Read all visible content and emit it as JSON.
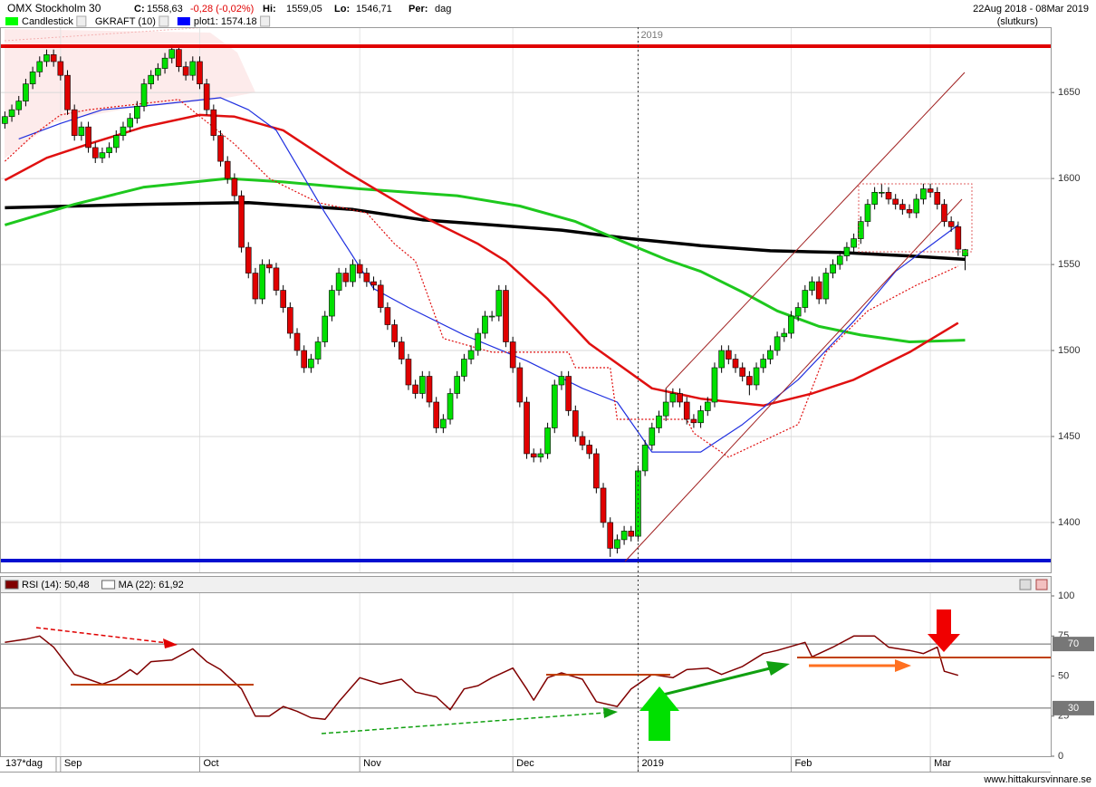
{
  "header": {
    "title": "OMX Stockholm 30",
    "close_label": "C:",
    "close": "1558,63",
    "change": "-0,28 (-0,02%)",
    "high_label": "Hi:",
    "high": "1559,05",
    "low_label": "Lo:",
    "low": "1546,71",
    "period_label": "Per:",
    "period": "dag",
    "date_range": "22Aug 2018 - 08Mar 2019",
    "price_type": "(slutkurs)",
    "legend": [
      {
        "name": "Candlestick",
        "color": "#00ff00"
      },
      {
        "name": "GKRAFT (10)"
      },
      {
        "name": "plot1: 1574.18",
        "color": "#0000ff"
      }
    ],
    "footer": "137*dag",
    "watermark": "www.hittakursvinnare.se"
  },
  "chart_data": [
    {
      "type": "candlestick",
      "up_color": "#00e000",
      "down_color": "#e00000",
      "xlim": [
        -0.7,
        150.3
      ],
      "ylim": [
        1371,
        1688
      ],
      "yticks": [
        1400,
        1450,
        1500,
        1550,
        1600,
        1650
      ],
      "grid": true,
      "xticks": [
        {
          "value": 8,
          "label": "Sep"
        },
        {
          "value": 28,
          "label": "Oct"
        },
        {
          "value": 51,
          "label": "Nov"
        },
        {
          "value": 73,
          "label": "Dec"
        },
        {
          "value": 91,
          "label": "2019"
        },
        {
          "value": 113,
          "label": "Feb"
        },
        {
          "value": 133,
          "label": "Mar"
        }
      ],
      "vline": {
        "value": 91,
        "label": "2019"
      },
      "candles": [
        [
          1632,
          1639,
          1629,
          1636
        ],
        [
          1636,
          1643,
          1633,
          1640
        ],
        [
          1640,
          1648,
          1637,
          1645
        ],
        [
          1645,
          1658,
          1642,
          1655
        ],
        [
          1655,
          1665,
          1652,
          1662
        ],
        [
          1662,
          1671,
          1659,
          1668
        ],
        [
          1668,
          1675,
          1665,
          1672
        ],
        [
          1672,
          1675,
          1665,
          1668
        ],
        [
          1668,
          1671,
          1657,
          1660
        ],
        [
          1660,
          1663,
          1637,
          1640
        ],
        [
          1640,
          1643,
          1622,
          1625
        ],
        [
          1625,
          1633,
          1622,
          1630
        ],
        [
          1630,
          1633,
          1615,
          1618
        ],
        [
          1618,
          1621,
          1609,
          1612
        ],
        [
          1612,
          1618,
          1609,
          1615
        ],
        [
          1615,
          1621,
          1612,
          1618
        ],
        [
          1618,
          1628,
          1615,
          1625
        ],
        [
          1625,
          1633,
          1622,
          1630
        ],
        [
          1630,
          1638,
          1627,
          1635
        ],
        [
          1635,
          1645,
          1632,
          1642
        ],
        [
          1642,
          1658,
          1639,
          1655
        ],
        [
          1655,
          1663,
          1652,
          1660
        ],
        [
          1660,
          1667,
          1657,
          1664
        ],
        [
          1664,
          1673,
          1661,
          1670
        ],
        [
          1670,
          1678,
          1667,
          1675
        ],
        [
          1675,
          1678,
          1662,
          1665
        ],
        [
          1665,
          1668,
          1657,
          1660
        ],
        [
          1660,
          1671,
          1657,
          1668
        ],
        [
          1668,
          1671,
          1652,
          1655
        ],
        [
          1655,
          1658,
          1637,
          1640
        ],
        [
          1640,
          1643,
          1622,
          1625
        ],
        [
          1625,
          1628,
          1607,
          1610
        ],
        [
          1610,
          1613,
          1597,
          1600
        ],
        [
          1600,
          1603,
          1587,
          1590
        ],
        [
          1590,
          1593,
          1557,
          1560
        ],
        [
          1560,
          1563,
          1542,
          1545
        ],
        [
          1545,
          1548,
          1527,
          1530
        ],
        [
          1530,
          1553,
          1527,
          1550
        ],
        [
          1550,
          1553,
          1545,
          1548
        ],
        [
          1548,
          1551,
          1532,
          1535
        ],
        [
          1535,
          1538,
          1522,
          1525
        ],
        [
          1525,
          1528,
          1507,
          1510
        ],
        [
          1510,
          1513,
          1497,
          1500
        ],
        [
          1500,
          1503,
          1487,
          1490
        ],
        [
          1490,
          1498,
          1487,
          1495
        ],
        [
          1495,
          1508,
          1492,
          1505
        ],
        [
          1505,
          1523,
          1502,
          1520
        ],
        [
          1520,
          1538,
          1517,
          1535
        ],
        [
          1535,
          1548,
          1532,
          1545
        ],
        [
          1545,
          1548,
          1537,
          1540
        ],
        [
          1540,
          1553,
          1537,
          1550
        ],
        [
          1550,
          1553,
          1542,
          1545
        ],
        [
          1545,
          1548,
          1537,
          1540
        ],
        [
          1540,
          1543,
          1535,
          1538
        ],
        [
          1538,
          1541,
          1522,
          1525
        ],
        [
          1525,
          1528,
          1512,
          1515
        ],
        [
          1515,
          1518,
          1502,
          1505
        ],
        [
          1505,
          1508,
          1492,
          1495
        ],
        [
          1495,
          1498,
          1477,
          1480
        ],
        [
          1480,
          1483,
          1472,
          1475
        ],
        [
          1475,
          1488,
          1472,
          1485
        ],
        [
          1485,
          1488,
          1467,
          1470
        ],
        [
          1470,
          1473,
          1452,
          1455
        ],
        [
          1455,
          1463,
          1452,
          1460
        ],
        [
          1460,
          1478,
          1457,
          1475
        ],
        [
          1475,
          1488,
          1472,
          1485
        ],
        [
          1485,
          1498,
          1482,
          1495
        ],
        [
          1495,
          1503,
          1492,
          1500
        ],
        [
          1500,
          1513,
          1497,
          1510
        ],
        [
          1510,
          1523,
          1507,
          1520
        ],
        [
          1520,
          1523,
          1517,
          1520
        ],
        [
          1520,
          1538,
          1517,
          1535
        ],
        [
          1535,
          1538,
          1502,
          1505
        ],
        [
          1505,
          1508,
          1487,
          1490
        ],
        [
          1490,
          1493,
          1467,
          1470
        ],
        [
          1470,
          1473,
          1437,
          1440
        ],
        [
          1440,
          1443,
          1435,
          1438
        ],
        [
          1438,
          1443,
          1435,
          1440
        ],
        [
          1440,
          1458,
          1437,
          1455
        ],
        [
          1455,
          1483,
          1452,
          1480
        ],
        [
          1480,
          1488,
          1477,
          1485
        ],
        [
          1485,
          1488,
          1462,
          1465
        ],
        [
          1465,
          1468,
          1447,
          1450
        ],
        [
          1450,
          1453,
          1442,
          1445
        ],
        [
          1445,
          1448,
          1437,
          1440
        ],
        [
          1440,
          1443,
          1417,
          1420
        ],
        [
          1420,
          1423,
          1397,
          1400
        ],
        [
          1400,
          1403,
          1380,
          1385
        ],
        [
          1385,
          1393,
          1382,
          1390
        ],
        [
          1390,
          1398,
          1387,
          1395
        ],
        [
          1395,
          1398,
          1389,
          1392
        ],
        [
          1392,
          1433,
          1389,
          1430
        ],
        [
          1430,
          1448,
          1427,
          1445
        ],
        [
          1445,
          1458,
          1442,
          1455
        ],
        [
          1455,
          1465,
          1452,
          1462
        ],
        [
          1462,
          1478,
          1459,
          1470
        ],
        [
          1470,
          1478,
          1467,
          1475
        ],
        [
          1475,
          1478,
          1467,
          1470
        ],
        [
          1470,
          1473,
          1457,
          1460
        ],
        [
          1460,
          1463,
          1455,
          1458
        ],
        [
          1458,
          1468,
          1455,
          1465
        ],
        [
          1465,
          1473,
          1462,
          1470
        ],
        [
          1470,
          1493,
          1467,
          1490
        ],
        [
          1490,
          1503,
          1487,
          1500
        ],
        [
          1500,
          1503,
          1492,
          1495
        ],
        [
          1495,
          1498,
          1487,
          1490
        ],
        [
          1490,
          1493,
          1482,
          1485
        ],
        [
          1485,
          1488,
          1474,
          1480
        ],
        [
          1480,
          1493,
          1477,
          1490
        ],
        [
          1490,
          1498,
          1487,
          1495
        ],
        [
          1495,
          1503,
          1492,
          1500
        ],
        [
          1500,
          1511,
          1497,
          1508
        ],
        [
          1508,
          1513,
          1505,
          1510
        ],
        [
          1510,
          1523,
          1507,
          1520
        ],
        [
          1520,
          1528,
          1517,
          1525
        ],
        [
          1525,
          1538,
          1522,
          1535
        ],
        [
          1535,
          1543,
          1532,
          1540
        ],
        [
          1540,
          1543,
          1527,
          1530
        ],
        [
          1530,
          1548,
          1527,
          1545
        ],
        [
          1545,
          1553,
          1542,
          1550
        ],
        [
          1550,
          1558,
          1547,
          1555
        ],
        [
          1555,
          1563,
          1552,
          1560
        ],
        [
          1560,
          1568,
          1557,
          1565
        ],
        [
          1565,
          1578,
          1562,
          1575
        ],
        [
          1575,
          1588,
          1572,
          1585
        ],
        [
          1585,
          1595,
          1582,
          1592
        ],
        [
          1592,
          1597,
          1589,
          1592
        ],
        [
          1592,
          1595,
          1585,
          1588
        ],
        [
          1588,
          1591,
          1582,
          1585
        ],
        [
          1585,
          1588,
          1579,
          1582
        ],
        [
          1582,
          1585,
          1577,
          1580
        ],
        [
          1580,
          1591,
          1577,
          1588
        ],
        [
          1588,
          1597,
          1585,
          1594
        ],
        [
          1594,
          1597,
          1589,
          1592
        ],
        [
          1592,
          1595,
          1582,
          1585
        ],
        [
          1585,
          1588,
          1572,
          1575
        ],
        [
          1575,
          1578,
          1569,
          1572
        ],
        [
          1572,
          1575,
          1555,
          1558.91
        ],
        [
          1555,
          1559.05,
          1546.71,
          1558.63
        ]
      ],
      "series": [
        {
          "color": "#000000",
          "width": 3.5,
          "x": [
            0,
            20,
            35,
            50,
            60,
            80,
            90,
            100,
            110,
            120,
            130,
            138
          ],
          "values": [
            1583,
            1585,
            1586,
            1582,
            1576,
            1570,
            1565,
            1561,
            1558,
            1557,
            1555,
            1553
          ]
        },
        {
          "color": "#1ec81e",
          "width": 3,
          "x": [
            0,
            10,
            20,
            32,
            40,
            51,
            65,
            74,
            82,
            89,
            95,
            100,
            106,
            111,
            117,
            123,
            130,
            138
          ],
          "values": [
            1573,
            1585,
            1595,
            1600,
            1598,
            1594,
            1590,
            1584,
            1575,
            1563,
            1553,
            1546,
            1534,
            1523,
            1514,
            1509,
            1505,
            1506
          ]
        },
        {
          "color": "#e01010",
          "width": 2.5,
          "x": [
            0,
            6,
            12,
            20,
            28,
            33,
            40,
            49,
            59,
            68,
            72,
            78,
            84,
            93,
            100,
            109,
            116,
            122,
            130,
            137
          ],
          "values": [
            1599,
            1612,
            1620,
            1630,
            1637,
            1636,
            1628,
            1604,
            1580,
            1562,
            1552,
            1530,
            1504,
            1478,
            1472,
            1468,
            1475,
            1483,
            1499,
            1516
          ]
        },
        {
          "color": "#2030e0",
          "width": 1.2,
          "x": [
            2,
            8,
            14,
            22,
            31,
            35,
            39,
            46,
            53,
            58,
            66,
            75,
            83,
            88,
            93,
            100,
            106,
            114,
            122,
            128,
            137
          ],
          "values": [
            1623,
            1632,
            1640,
            1643,
            1647,
            1640,
            1628,
            1580,
            1536,
            1525,
            1509,
            1494,
            1478,
            1470,
            1441,
            1441,
            1457,
            1483,
            1517,
            1546,
            1573
          ]
        },
        {
          "color": "#e01010",
          "width": 1.2,
          "dash": true,
          "x": [
            0,
            4,
            8,
            12,
            25,
            33,
            38,
            41,
            45,
            52,
            56,
            59,
            63,
            70,
            81,
            82,
            87,
            88,
            98,
            99,
            104,
            114,
            118,
            124,
            131,
            137
          ],
          "values": [
            1610,
            1625,
            1637,
            1640,
            1646,
            1620,
            1600,
            1594,
            1586,
            1580,
            1562,
            1552,
            1507,
            1499,
            1499,
            1490,
            1490,
            1460,
            1460,
            1452,
            1438,
            1457,
            1499,
            1523,
            1538,
            1549
          ]
        }
      ]
    },
    {
      "type": "line",
      "xlim": [
        -0.7,
        150.3
      ],
      "ylim": [
        0,
        101.7
      ],
      "yticks": [
        0,
        25,
        50,
        75,
        100
      ],
      "hlines": [
        70,
        30
      ],
      "legend": [
        {
          "name": "RSI (14): 50,48",
          "color": "#800000"
        },
        {
          "name": "MA (22): 61,92",
          "color": "#ffffff"
        }
      ],
      "series": [
        {
          "color": "#800000",
          "x": [
            0,
            3,
            5,
            7,
            10,
            12,
            14,
            16,
            18,
            19,
            21,
            24,
            27,
            29,
            31,
            34,
            36,
            38,
            40,
            42,
            44,
            46,
            48,
            51,
            54,
            57,
            59,
            62,
            64,
            66,
            68,
            70,
            73,
            75,
            76,
            78,
            80,
            83,
            85,
            88,
            90,
            93,
            96,
            98,
            101,
            103,
            106,
            109,
            111,
            115,
            116,
            119,
            122,
            125,
            127,
            130,
            132,
            134,
            135,
            137
          ],
          "values": [
            71,
            73,
            75,
            68,
            51,
            48,
            45,
            48,
            54,
            51,
            59,
            60,
            67,
            59,
            54,
            42,
            25,
            25,
            31,
            28,
            24,
            23,
            34,
            49,
            45,
            48,
            40,
            37,
            29,
            42,
            44,
            49,
            55,
            42,
            35,
            49,
            52,
            48,
            34,
            31,
            42,
            51,
            49,
            54,
            55,
            51,
            56,
            64,
            66,
            71,
            62,
            68,
            75,
            75,
            68,
            66,
            64,
            68,
            53,
            50.48
          ]
        }
      ]
    }
  ]
}
